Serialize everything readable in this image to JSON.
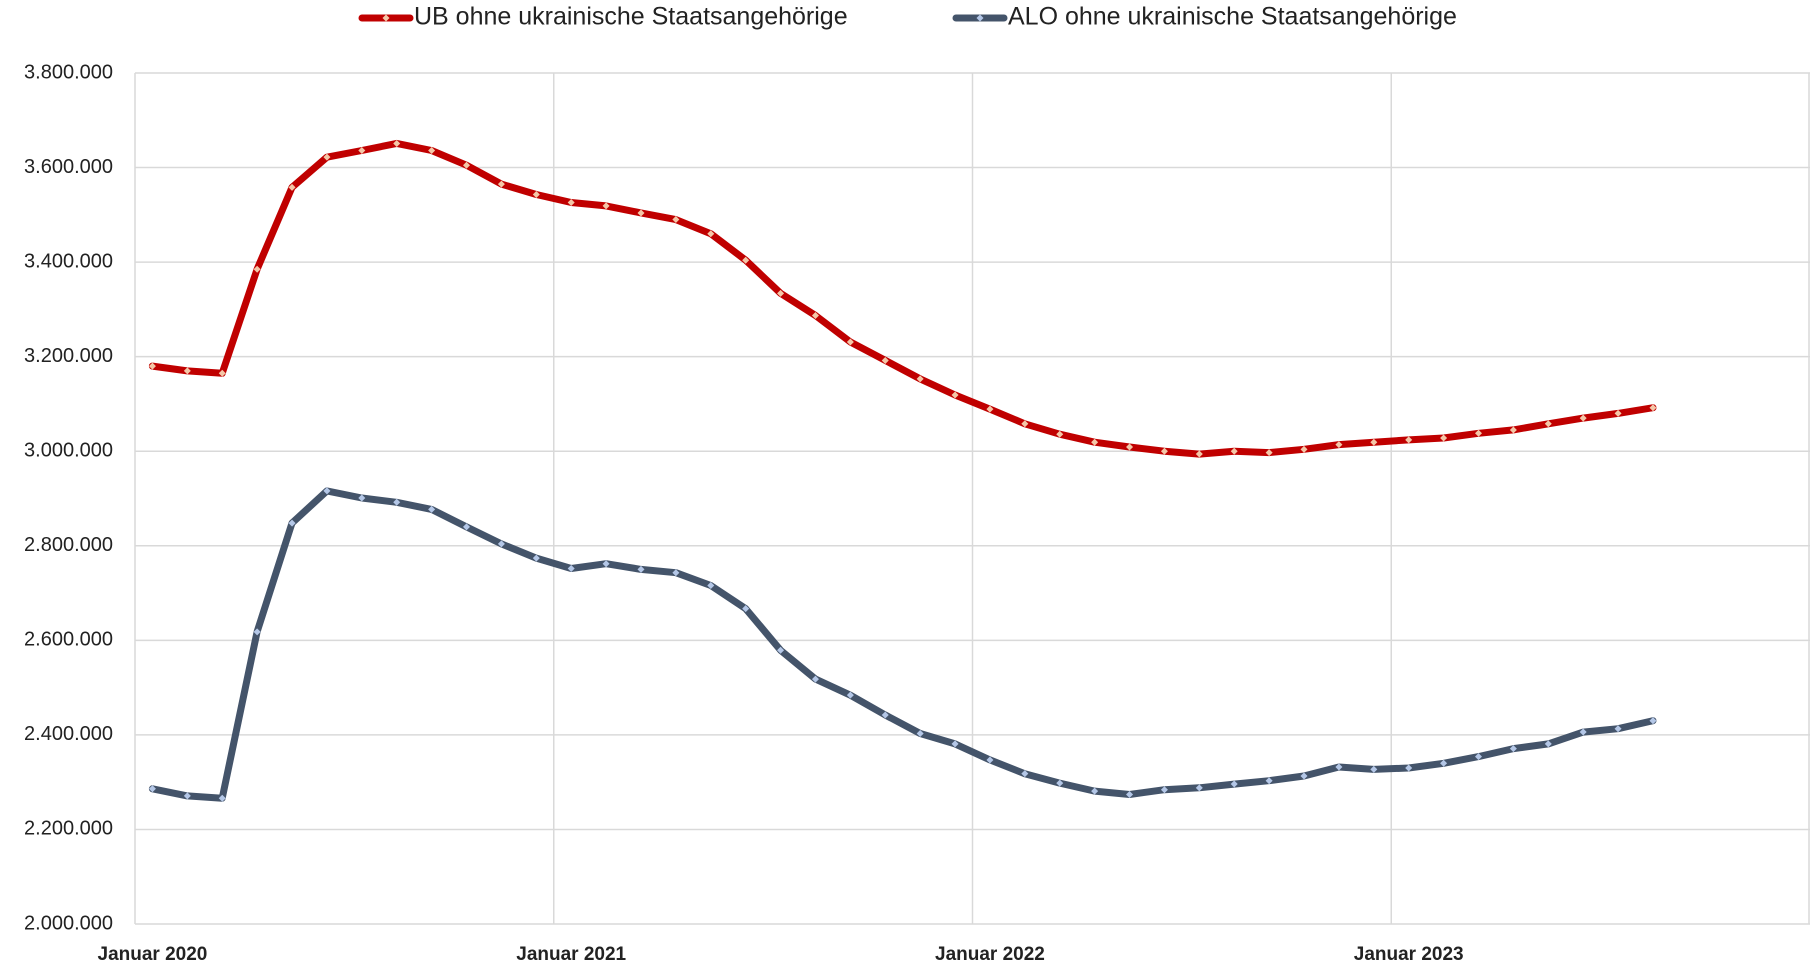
{
  "chart_data": {
    "type": "line",
    "categories": [
      "Januar 2020",
      null,
      null,
      null,
      null,
      null,
      null,
      null,
      null,
      null,
      null,
      null,
      "Januar 2021",
      null,
      null,
      null,
      null,
      null,
      null,
      null,
      null,
      null,
      null,
      null,
      "Januar 2022",
      null,
      null,
      null,
      null,
      null,
      null,
      null,
      null,
      null,
      null,
      null,
      "Januar 2023",
      null,
      null,
      null,
      null,
      null,
      null,
      null,
      null,
      null,
      null,
      null
    ],
    "series": [
      {
        "name": "UB ohne ukrainische Staatsangehörige",
        "color": "#c00000",
        "marker_color": "#f4c7a8",
        "values": [
          3180000,
          3170000,
          3165000,
          3385000,
          3558000,
          3622000,
          3636000,
          3651000,
          3636000,
          3605000,
          3565000,
          3543000,
          3526000,
          3519000,
          3504000,
          3490000,
          3460000,
          3404000,
          3334000,
          3287000,
          3231000,
          3192000,
          3153000,
          3119000,
          3089000,
          3058000,
          3036000,
          3019000,
          3009000,
          3000000,
          2994000,
          3000000,
          2997000,
          3004000,
          3014000,
          3019000,
          3024000,
          3028000,
          3038000,
          3045000,
          3058000,
          3070000,
          3080000,
          3092000,
          null,
          null,
          null,
          null
        ]
      },
      {
        "name": "ALO ohne ukrainische Staatsangehörige",
        "color": "#44546a",
        "marker_color": "#b4c7e7",
        "values": [
          2286000,
          2271000,
          2266000,
          2618000,
          2848000,
          2916000,
          2901000,
          2892000,
          2877000,
          2840000,
          2804000,
          2774000,
          2752000,
          2762000,
          2750000,
          2743000,
          2716000,
          2667000,
          2579000,
          2518000,
          2484000,
          2442000,
          2403000,
          2381000,
          2347000,
          2318000,
          2298000,
          2281000,
          2274000,
          2284000,
          2288000,
          2296000,
          2303000,
          2313000,
          2332000,
          2327000,
          2330000,
          2340000,
          2354000,
          2371000,
          2381000,
          2406000,
          2413000,
          2430000,
          null,
          null,
          null,
          null
        ]
      }
    ],
    "ylim": [
      2000000,
      3800000
    ],
    "yticks": [
      {
        "value": 2000000,
        "label": "2.000.000"
      },
      {
        "value": 2200000,
        "label": "2.200.000"
      },
      {
        "value": 2400000,
        "label": "2.400.000"
      },
      {
        "value": 2600000,
        "label": "2.600.000"
      },
      {
        "value": 2800000,
        "label": "2.800.000"
      },
      {
        "value": 3000000,
        "label": "3.000.000"
      },
      {
        "value": 3200000,
        "label": "3.200.000"
      },
      {
        "value": 3400000,
        "label": "3.400.000"
      },
      {
        "value": 3600000,
        "label": "3.600.000"
      },
      {
        "value": 3800000,
        "label": "3.800.000"
      }
    ],
    "grid": true,
    "legend": "top"
  }
}
